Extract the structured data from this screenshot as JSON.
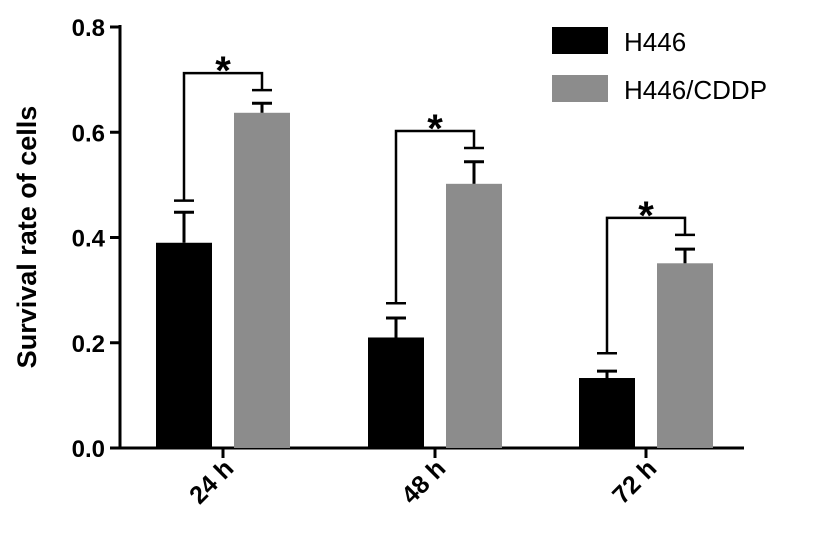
{
  "chart_data": {
    "type": "bar",
    "title": "",
    "xlabel": "",
    "ylabel": "Survival rate of cells",
    "ylim": [
      0,
      0.8
    ],
    "yticks": [
      "0.0",
      "0.2",
      "0.4",
      "0.6",
      "0.8"
    ],
    "categories": [
      "24 h",
      "48 h",
      "72 h"
    ],
    "series": [
      {
        "name": "H446",
        "color": "#000000",
        "values": [
          0.39,
          0.21,
          0.133
        ],
        "errors": [
          0.058,
          0.037,
          0.013
        ]
      },
      {
        "name": "H446/CDDP",
        "color": "#8c8c8c",
        "values": [
          0.637,
          0.502,
          0.351
        ],
        "errors": [
          0.018,
          0.042,
          0.027
        ]
      }
    ],
    "significance": [
      {
        "category": "24 h",
        "label": "*",
        "left_top": 0.47,
        "right_top": 0.68
      },
      {
        "category": "48 h",
        "label": "*",
        "left_top": 0.275,
        "right_top": 0.57
      },
      {
        "category": "72 h",
        "label": "*",
        "left_top": 0.18,
        "right_top": 0.405
      }
    ],
    "legend_position": "top-right",
    "grid": false
  }
}
